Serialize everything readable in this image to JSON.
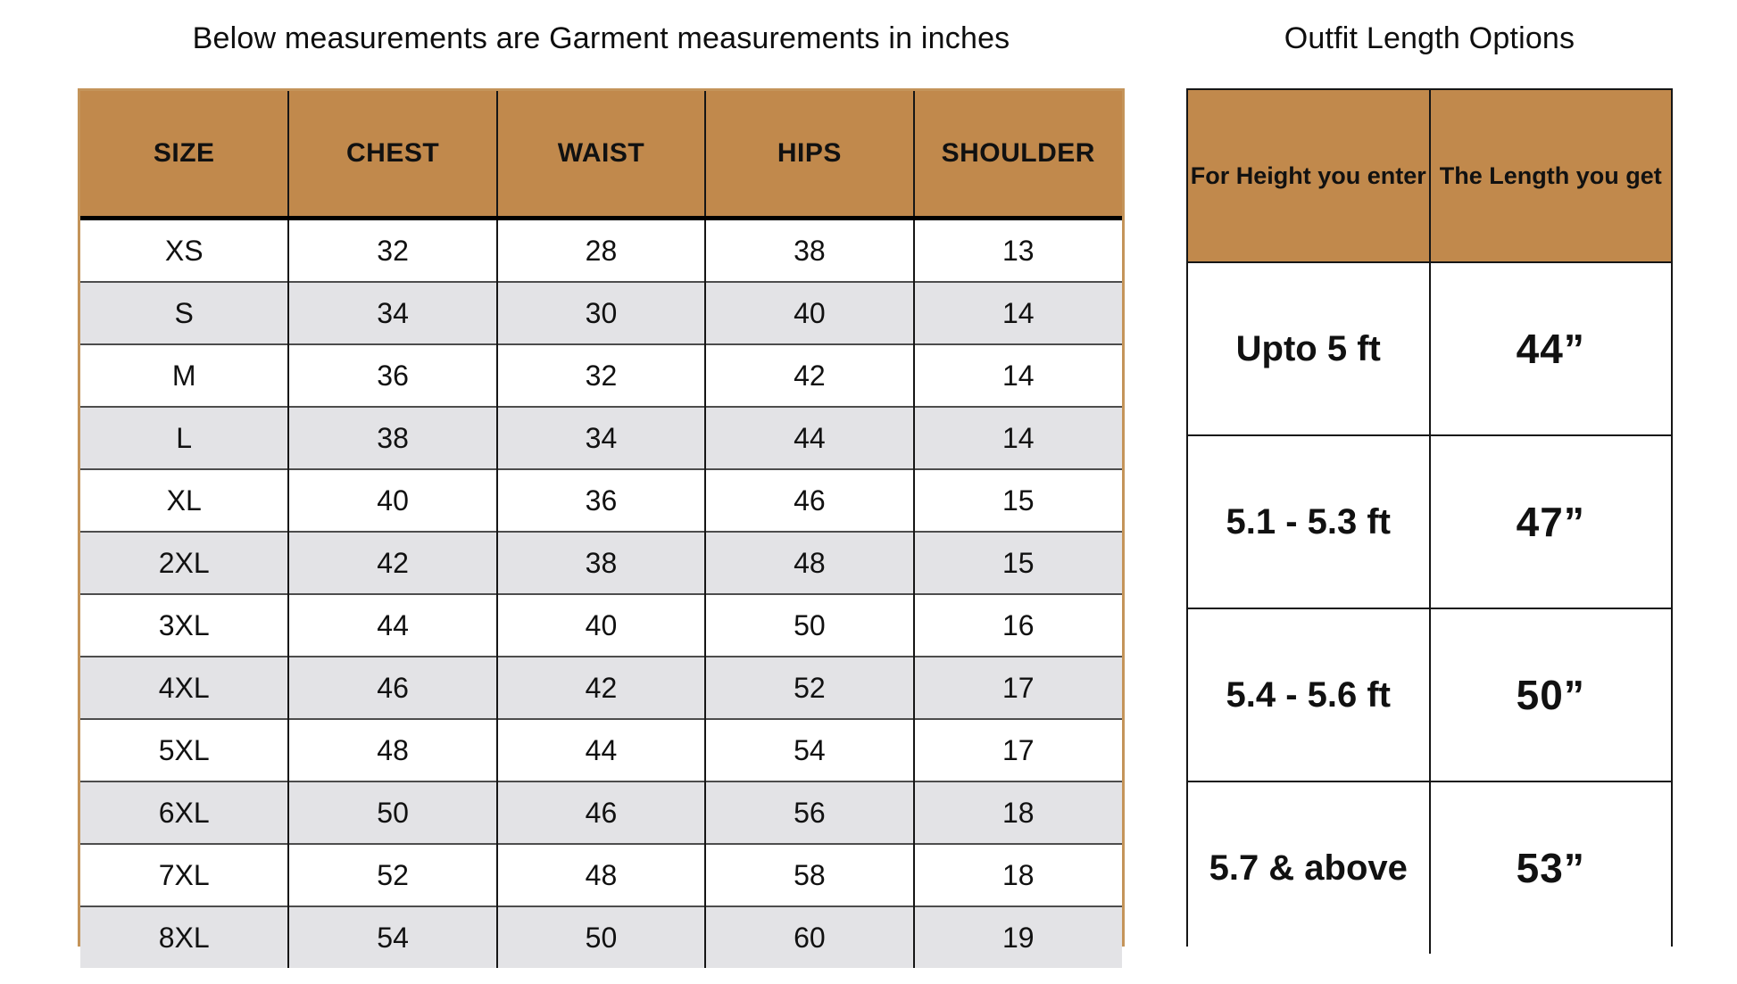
{
  "left_table": {
    "title": "Below measurements are Garment measurements in inches",
    "columns": [
      "SIZE",
      "CHEST",
      "WAIST",
      "HIPS",
      "SHOULDER"
    ],
    "rows": [
      [
        "XS",
        "32",
        "28",
        "38",
        "13"
      ],
      [
        "S",
        "34",
        "30",
        "40",
        "14"
      ],
      [
        "M",
        "36",
        "32",
        "42",
        "14"
      ],
      [
        "L",
        "38",
        "34",
        "44",
        "14"
      ],
      [
        "XL",
        "40",
        "36",
        "46",
        "15"
      ],
      [
        "2XL",
        "42",
        "38",
        "48",
        "15"
      ],
      [
        "3XL",
        "44",
        "40",
        "50",
        "16"
      ],
      [
        "4XL",
        "46",
        "42",
        "52",
        "17"
      ],
      [
        "5XL",
        "48",
        "44",
        "54",
        "17"
      ],
      [
        "6XL",
        "50",
        "46",
        "56",
        "18"
      ],
      [
        "7XL",
        "52",
        "48",
        "58",
        "18"
      ],
      [
        "8XL",
        "54",
        "50",
        "60",
        "19"
      ]
    ]
  },
  "right_table": {
    "title": "Outfit Length Options",
    "columns": [
      "For Height you enter",
      "The Length you get"
    ],
    "rows": [
      [
        "Upto 5 ft",
        "44”"
      ],
      [
        "5.1 - 5.3 ft",
        "47”"
      ],
      [
        "5.4 - 5.6 ft",
        "50”"
      ],
      [
        "5.7 & above",
        "53”"
      ]
    ]
  },
  "colors": {
    "header_bg": "#c1894c",
    "alt_row_bg": "#e3e3e6",
    "row_bg": "#ffffff",
    "left_table_outer_border": "#c4945a",
    "grid_line": "#161616",
    "text": "#111111"
  }
}
